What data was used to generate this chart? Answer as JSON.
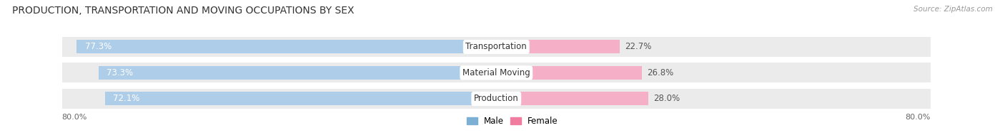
{
  "title": "PRODUCTION, TRANSPORTATION AND MOVING OCCUPATIONS BY SEX",
  "source": "Source: ZipAtlas.com",
  "categories": [
    "Transportation",
    "Material Moving",
    "Production"
  ],
  "male_values": [
    77.3,
    73.3,
    72.1
  ],
  "female_values": [
    22.7,
    26.8,
    28.0
  ],
  "male_color": "#7bafd4",
  "female_color": "#f07ca0",
  "male_color_light": "#aecde8",
  "female_color_light": "#f5b0c8",
  "male_label": "Male",
  "female_label": "Female",
  "axis_max": 80.0,
  "left_tick_label": "80.0%",
  "right_tick_label": "80.0%",
  "bg_color": "#ffffff",
  "bar_bg_color": "#ebebeb",
  "label_fontsize": 8.5,
  "title_fontsize": 10.0,
  "bar_height": 0.52,
  "bar_bg_extra": 0.25
}
